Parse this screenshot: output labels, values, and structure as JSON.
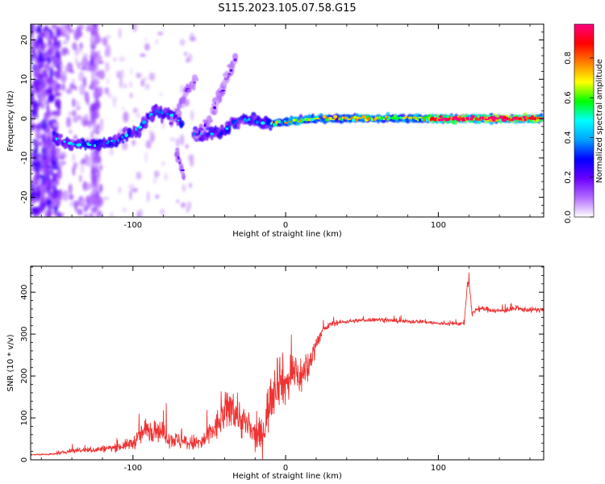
{
  "figure_title": "S115.2023.105.07.58.G15",
  "chart_data": [
    {
      "type": "heatmap",
      "xlabel": "Height of straight line (km)",
      "ylabel": "Frequency (Hz)",
      "xlim": [
        -167,
        169
      ],
      "ylim": [
        -25,
        24
      ],
      "x_ticks": [
        -100,
        0,
        100
      ],
      "y_ticks": [
        -20,
        -10,
        0,
        10,
        20
      ],
      "colorbar": {
        "label": "Normalized spectral amplitude",
        "range": [
          0,
          0.97
        ],
        "ticks": [
          "0.0",
          "0.2",
          "0.4",
          "0.6",
          "0.8"
        ],
        "tick_values": [
          0.0,
          0.2,
          0.4,
          0.6,
          0.8
        ],
        "colors": [
          "#ffffff",
          "#b36bff",
          "#6a00ff",
          "#0000ff",
          "#00a2ff",
          "#00ffff",
          "#00ff00",
          "#ffff00",
          "#ff8000",
          "#ff0000",
          "#ff0080"
        ]
      },
      "ridges": [
        {
          "points": [
            [
              -152,
              -5
            ],
            [
              -140,
              -6.5
            ],
            [
              -125,
              -6.5
            ],
            [
              -110,
              -5.5
            ],
            [
              -95,
              -2
            ],
            [
              -85,
              2
            ],
            [
              -75,
              1
            ],
            [
              -68,
              -1
            ]
          ],
          "amplitude": 0.35
        },
        {
          "points": [
            [
              -60,
              -4
            ],
            [
              -50,
              -4
            ],
            [
              -40,
              -3
            ],
            [
              -30,
              0
            ],
            [
              -20,
              -0.8
            ],
            [
              -10,
              -1.2
            ]
          ],
          "amplitude": 0.35
        },
        {
          "points": [
            [
              -75,
              -1
            ],
            [
              -70,
              2
            ],
            [
              -65,
              7
            ],
            [
              -58,
              10
            ]
          ],
          "amplitude": 0.15
        },
        {
          "points": [
            [
              -60,
              -5
            ],
            [
              -50,
              0
            ],
            [
              -40,
              8
            ],
            [
              -33,
              15
            ]
          ],
          "amplitude": 0.15
        },
        {
          "points": [
            [
              -72,
              -8
            ],
            [
              -66,
              -15
            ]
          ],
          "amplitude": 0.15
        },
        {
          "points": [
            [
              -46,
              4
            ],
            [
              -40,
              9
            ],
            [
              -35,
              13
            ]
          ],
          "amplitude": 0.12
        },
        {
          "points": [
            [
              -10,
              -1.2
            ],
            [
              0,
              -0.8
            ],
            [
              20,
              0
            ],
            [
              60,
              0.1
            ],
            [
              100,
              0
            ],
            [
              168,
              0
            ]
          ],
          "amplitude": 0.55
        },
        {
          "points": [
            [
              95,
              0
            ],
            [
              168,
              0
            ]
          ],
          "amplitude": 0.85
        }
      ]
    },
    {
      "type": "line",
      "xlabel": "Height of straight line (km)",
      "ylabel": "SNR (10 * v/v)",
      "xlim": [
        -167,
        169
      ],
      "ylim": [
        0,
        462
      ],
      "x_ticks": [
        -100,
        0,
        100
      ],
      "y_ticks": [
        0,
        100,
        200,
        300,
        400
      ],
      "color": "#ee3333",
      "x": [
        -167,
        -150,
        -140,
        -125,
        -110,
        -100,
        -92,
        -85,
        -75,
        -65,
        -55,
        -45,
        -40,
        -35,
        -30,
        -25,
        -20,
        -15,
        -10,
        -5,
        0,
        5,
        10,
        15,
        20,
        25,
        30,
        40,
        50,
        60,
        70,
        80,
        90,
        100,
        110,
        117,
        119,
        120,
        122,
        125,
        130,
        140,
        150,
        160,
        169
      ],
      "y": [
        12,
        14,
        22,
        24,
        30,
        40,
        70,
        75,
        50,
        40,
        40,
        80,
        110,
        130,
        100,
        80,
        55,
        60,
        150,
        200,
        180,
        210,
        200,
        220,
        280,
        310,
        325,
        330,
        333,
        335,
        332,
        330,
        330,
        325,
        325,
        325,
        420,
        430,
        345,
        360,
        360,
        355,
        360,
        358,
        358
      ],
      "noise": [
        2,
        4,
        10,
        12,
        15,
        25,
        50,
        45,
        35,
        30,
        35,
        60,
        75,
        85,
        75,
        70,
        60,
        70,
        110,
        110,
        90,
        90,
        80,
        60,
        30,
        15,
        10,
        8,
        8,
        8,
        8,
        8,
        8,
        8,
        8,
        8,
        15,
        20,
        12,
        10,
        10,
        10,
        10,
        10,
        10
      ]
    }
  ]
}
